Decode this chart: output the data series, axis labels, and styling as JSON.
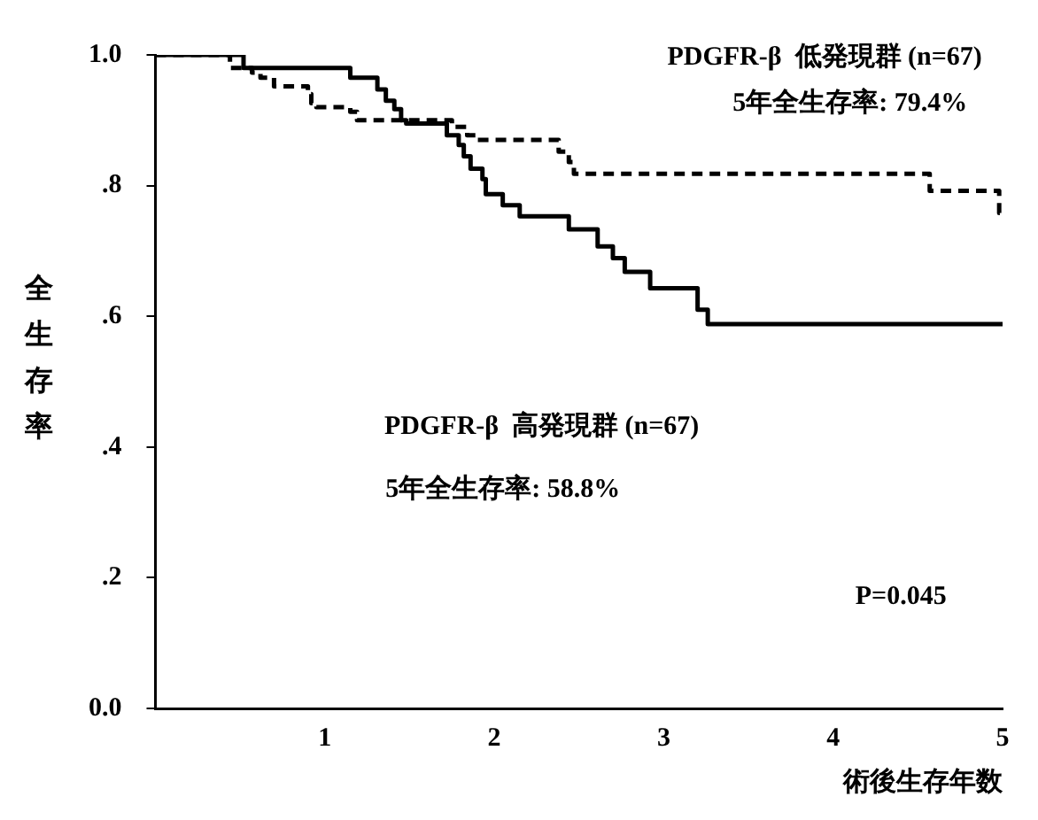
{
  "chart_data": {
    "type": "step",
    "xlabel": "術後生存年数",
    "ylabel": "全生存率",
    "xlim": [
      0,
      5
    ],
    "ylim": [
      0,
      1
    ],
    "xticks": [
      1,
      2,
      3,
      4,
      5
    ],
    "yticks": [
      {
        "value": 0,
        "label": "0.0"
      },
      {
        "value": 0.2,
        "label": ".2"
      },
      {
        "value": 0.4,
        "label": ".4"
      },
      {
        "value": 0.6,
        "label": ".6"
      },
      {
        "value": 0.8,
        "label": ".8"
      },
      {
        "value": 1,
        "label": "1.0"
      }
    ],
    "series": [
      {
        "color": "#000000",
        "line_style": "dashed",
        "x": [
          0,
          0.44,
          0.57,
          0.62,
          0.7,
          0.9,
          0.92,
          0.95,
          1.15,
          1.19,
          1.75,
          1.84,
          1.9,
          2.38,
          2.44,
          2.47,
          4.57,
          4.98,
          5
        ],
        "values": [
          1,
          0.98,
          0.973,
          0.965,
          0.952,
          0.94,
          0.926,
          0.92,
          0.913,
          0.9,
          0.89,
          0.877,
          0.87,
          0.852,
          0.836,
          0.818,
          0.792,
          0.758,
          0.758
        ]
      },
      {
        "color": "#000000",
        "line_style": "solid",
        "x": [
          0,
          0.52,
          1.15,
          1.31,
          1.36,
          1.41,
          1.45,
          1.48,
          1.72,
          1.79,
          1.82,
          1.86,
          1.93,
          1.95,
          2.05,
          2.15,
          2.44,
          2.61,
          2.7,
          2.77,
          2.92,
          3.2,
          3.23,
          3.26,
          5
        ],
        "values": [
          1,
          0.98,
          0.965,
          0.947,
          0.93,
          0.917,
          0.9,
          0.895,
          0.877,
          0.862,
          0.845,
          0.826,
          0.81,
          0.787,
          0.77,
          0.753,
          0.733,
          0.707,
          0.689,
          0.668,
          0.643,
          0.61,
          0.61,
          0.588,
          0.588
        ]
      }
    ],
    "annotations": [
      "PDGFR-β  低発現群 (n=67)",
      "PDGFR-β  高発現群 (n=67)",
      "5年全生存率: 79.4%",
      "5年全生存率: 58.8%",
      "P=0.045"
    ],
    "marker": "none",
    "grid": false,
    "legend": false
  }
}
